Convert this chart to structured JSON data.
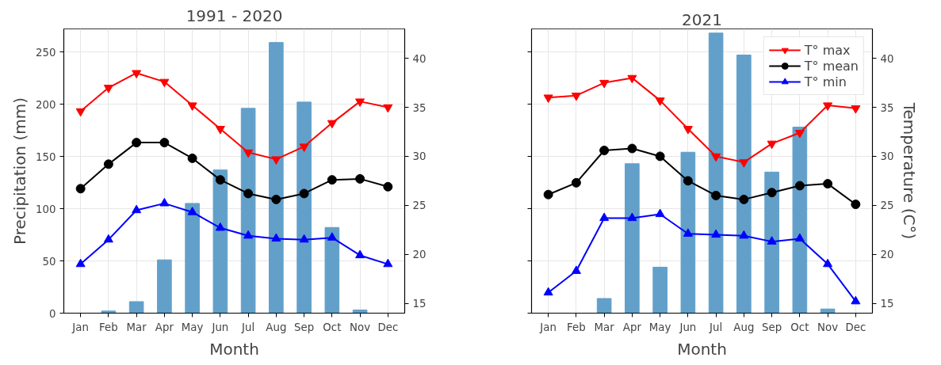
{
  "chart_data": [
    {
      "type": "bar",
      "title": "1991 - 2020",
      "xlabel": "Month",
      "ylabel": "Precipitation (mm)",
      "categories": [
        "Jan",
        "Feb",
        "Mar",
        "Apr",
        "May",
        "Jun",
        "Jul",
        "Aug",
        "Sep",
        "Oct",
        "Nov",
        "Dec"
      ],
      "ylim": [
        0,
        272
      ],
      "yticks": [
        0,
        50,
        100,
        150,
        200,
        250
      ],
      "y2lim": [
        14.0,
        43.0
      ],
      "y2ticks": [
        15,
        20,
        25,
        30,
        35,
        40
      ],
      "grid": true,
      "series": [
        {
          "color": "#62a0ca",
          "values": [
            0,
            2,
            11,
            51,
            105,
            137,
            196,
            259,
            202,
            82,
            3,
            0
          ]
        },
        {
          "type": "line",
          "axis": "y2",
          "color": "#ff0000",
          "marker": "triangle_down",
          "values": [
            34.6,
            37.0,
            38.5,
            37.6,
            35.2,
            32.8,
            30.4,
            29.7,
            31.0,
            33.4,
            35.6,
            35.0
          ]
        },
        {
          "type": "line",
          "axis": "y2",
          "color": "#000000",
          "marker": "circle",
          "values": [
            26.7,
            29.2,
            31.4,
            31.4,
            29.8,
            27.6,
            26.2,
            25.6,
            26.2,
            27.6,
            27.7,
            26.9
          ]
        },
        {
          "type": "line",
          "axis": "y2",
          "color": "#0000ff",
          "marker": "triangle",
          "values": [
            19.0,
            21.5,
            24.5,
            25.2,
            24.3,
            22.7,
            21.9,
            21.6,
            21.5,
            21.7,
            19.9,
            19.0
          ]
        }
      ]
    },
    {
      "type": "bar",
      "title": "2021",
      "xlabel": "Month",
      "y2label": "Temperature (C°)",
      "categories": [
        "Jan",
        "Feb",
        "Mar",
        "Apr",
        "May",
        "Jun",
        "Jul",
        "Aug",
        "Sep",
        "Oct",
        "Nov",
        "Dec"
      ],
      "y2lim": [
        14.0,
        43.0
      ],
      "y2ticks": [
        15,
        20,
        25,
        30,
        35,
        40
      ],
      "ylim": [
        0,
        272
      ],
      "tick_labels": [
        "x",
        "y2"
      ],
      "grid": true,
      "legend": "top right",
      "series": [
        {
          "color": "#62a0ca",
          "values": [
            0,
            0,
            14,
            143,
            44,
            154,
            268,
            247,
            135,
            178,
            4,
            0
          ]
        },
        {
          "type": "line",
          "name": "T° max",
          "axis": "y2",
          "color": "#ff0000",
          "marker": "triangle_down",
          "values": [
            36.0,
            36.2,
            37.5,
            38.0,
            35.7,
            32.8,
            30.0,
            29.4,
            31.3,
            32.4,
            35.2,
            34.9
          ]
        },
        {
          "type": "line",
          "name": "T° mean",
          "axis": "y2",
          "color": "#000000",
          "marker": "circle",
          "values": [
            26.1,
            27.3,
            30.6,
            30.8,
            30.0,
            27.5,
            26.0,
            25.6,
            26.3,
            27.0,
            27.2,
            25.1
          ]
        },
        {
          "type": "line",
          "name": "T° min",
          "axis": "y2",
          "color": "#0000ff",
          "marker": "triangle",
          "values": [
            16.1,
            18.3,
            23.7,
            23.7,
            24.1,
            22.1,
            22.0,
            21.9,
            21.3,
            21.6,
            19.0,
            15.2
          ]
        }
      ]
    }
  ]
}
